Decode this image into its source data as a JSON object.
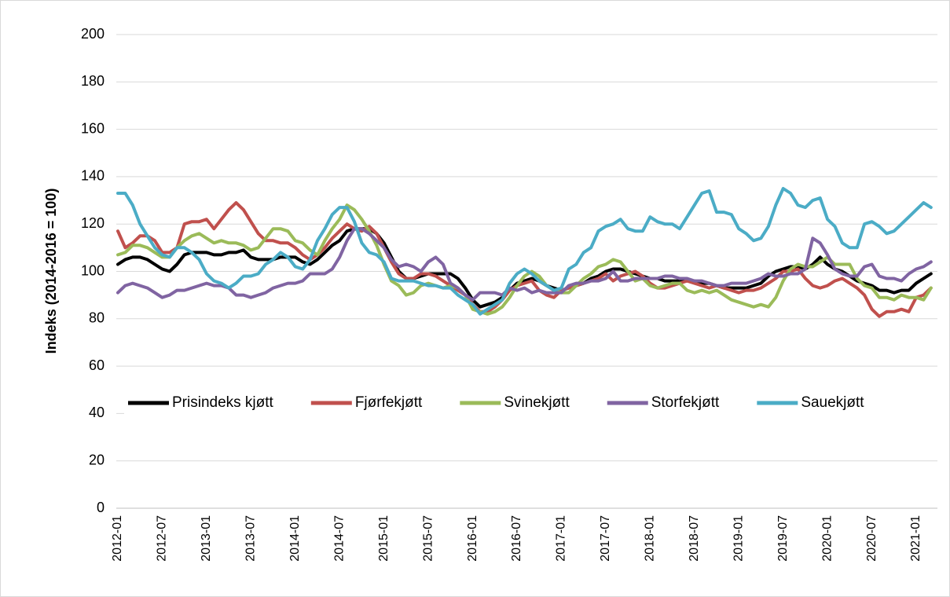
{
  "chart_data": {
    "type": "line",
    "y_label": "Indeks (2014-2016 = 100)",
    "categories": [
      "2012-01",
      null,
      null,
      null,
      null,
      null,
      "2012-07",
      null,
      null,
      null,
      null,
      null,
      "2013-01",
      null,
      null,
      null,
      null,
      null,
      "2013-07",
      null,
      null,
      null,
      null,
      null,
      "2014-01",
      null,
      null,
      null,
      null,
      null,
      "2014-07",
      null,
      null,
      null,
      null,
      null,
      "2015-01",
      null,
      null,
      null,
      null,
      null,
      "2015-07",
      null,
      null,
      null,
      null,
      null,
      "2016-01",
      null,
      null,
      null,
      null,
      null,
      "2016-07",
      null,
      null,
      null,
      null,
      null,
      "2017-01",
      null,
      null,
      null,
      null,
      null,
      "2017-07",
      null,
      null,
      null,
      null,
      null,
      "2018-01",
      null,
      null,
      null,
      null,
      null,
      "2018-07",
      null,
      null,
      null,
      null,
      null,
      "2019-01",
      null,
      null,
      null,
      null,
      null,
      "2019-07",
      null,
      null,
      null,
      null,
      null,
      "2020-01",
      null,
      null,
      null,
      null,
      null,
      "2020-07",
      null,
      null,
      null,
      null,
      null,
      "2021-01",
      null,
      null
    ],
    "series": [
      {
        "name": "Prisindeks kjøtt",
        "color": "#000000",
        "values": [
          103,
          105,
          106,
          106,
          105,
          103,
          101,
          100,
          103,
          107,
          108,
          108,
          108,
          107,
          107,
          108,
          108,
          109,
          106,
          105,
          105,
          105,
          106,
          106,
          106,
          104,
          103,
          105,
          108,
          111,
          113,
          117,
          118,
          118,
          118,
          116,
          112,
          106,
          100,
          97,
          97,
          98,
          99,
          99,
          99,
          99,
          97,
          93,
          88,
          85,
          86,
          87,
          89,
          92,
          95,
          96,
          97,
          96,
          94,
          93,
          92,
          93,
          94,
          95,
          97,
          98,
          100,
          101,
          101,
          100,
          99,
          98,
          97,
          97,
          96,
          96,
          96,
          96,
          96,
          95,
          95,
          94,
          93,
          93,
          93,
          93,
          94,
          95,
          98,
          100,
          101,
          102,
          102,
          101,
          103,
          106,
          103,
          101,
          100,
          98,
          96,
          95,
          94,
          92,
          92,
          91,
          92,
          92,
          95,
          97,
          99
        ]
      },
      {
        "name": "Fjørfekjøtt",
        "color": "#c0504d",
        "values": [
          117,
          110,
          112,
          115,
          115,
          113,
          108,
          108,
          110,
          120,
          121,
          121,
          122,
          118,
          122,
          126,
          129,
          126,
          121,
          116,
          113,
          113,
          112,
          112,
          110,
          107,
          105,
          107,
          110,
          114,
          117,
          120,
          118,
          117,
          119,
          116,
          110,
          104,
          99,
          97,
          97,
          99,
          99,
          98,
          96,
          94,
          92,
          90,
          86,
          83,
          83,
          85,
          88,
          92,
          94,
          95,
          96,
          92,
          90,
          89,
          92,
          93,
          94,
          95,
          96,
          97,
          99,
          96,
          98,
          99,
          100,
          98,
          95,
          93,
          93,
          94,
          95,
          96,
          95,
          94,
          93,
          94,
          93,
          92,
          91,
          92,
          92,
          93,
          95,
          97,
          100,
          100,
          101,
          97,
          94,
          93,
          94,
          96,
          97,
          95,
          93,
          90,
          84,
          81,
          83,
          83,
          84,
          83,
          89,
          90,
          93
        ]
      },
      {
        "name": "Svinekjøtt",
        "color": "#9bbb59",
        "values": [
          107,
          108,
          111,
          111,
          110,
          108,
          106,
          106,
          110,
          113,
          115,
          116,
          114,
          112,
          113,
          112,
          112,
          111,
          109,
          110,
          114,
          118,
          118,
          117,
          113,
          112,
          109,
          107,
          113,
          118,
          122,
          128,
          126,
          122,
          117,
          111,
          103,
          96,
          94,
          90,
          91,
          94,
          95,
          94,
          93,
          94,
          93,
          90,
          84,
          83,
          82,
          83,
          85,
          89,
          94,
          98,
          100,
          98,
          94,
          92,
          91,
          91,
          94,
          97,
          99,
          102,
          103,
          105,
          104,
          100,
          96,
          97,
          94,
          93,
          94,
          95,
          95,
          92,
          91,
          92,
          91,
          92,
          90,
          88,
          87,
          86,
          85,
          86,
          85,
          89,
          96,
          101,
          103,
          102,
          102,
          104,
          106,
          103,
          103,
          103,
          97,
          94,
          93,
          89,
          89,
          88,
          90,
          89,
          89,
          88,
          93
        ]
      },
      {
        "name": "Storfekjøtt",
        "color": "#8064a2",
        "values": [
          91,
          94,
          95,
          94,
          93,
          91,
          89,
          90,
          92,
          92,
          93,
          94,
          95,
          94,
          94,
          93,
          90,
          90,
          89,
          90,
          91,
          93,
          94,
          95,
          95,
          96,
          99,
          99,
          99,
          101,
          106,
          113,
          118,
          118,
          116,
          113,
          110,
          105,
          102,
          103,
          102,
          100,
          104,
          106,
          103,
          95,
          93,
          90,
          88,
          91,
          91,
          91,
          90,
          93,
          92,
          93,
          91,
          92,
          91,
          91,
          91,
          94,
          95,
          95,
          96,
          96,
          97,
          100,
          96,
          96,
          97,
          97,
          97,
          97,
          98,
          98,
          97,
          97,
          96,
          96,
          95,
          94,
          94,
          95,
          95,
          95,
          96,
          97,
          99,
          98,
          98,
          99,
          99,
          101,
          114,
          112,
          107,
          101,
          99,
          98,
          98,
          102,
          103,
          98,
          97,
          97,
          96,
          99,
          101,
          102,
          104
        ]
      },
      {
        "name": "Sauekjøtt",
        "color": "#4bacc6",
        "values": [
          133,
          133,
          128,
          120,
          115,
          110,
          107,
          106,
          110,
          110,
          108,
          105,
          99,
          96,
          95,
          93,
          95,
          98,
          98,
          99,
          103,
          105,
          108,
          106,
          102,
          101,
          105,
          113,
          118,
          124,
          127,
          127,
          121,
          112,
          108,
          107,
          104,
          97,
          96,
          96,
          96,
          95,
          94,
          94,
          93,
          93,
          90,
          88,
          86,
          82,
          84,
          86,
          88,
          95,
          99,
          101,
          99,
          96,
          94,
          92,
          93,
          101,
          103,
          108,
          110,
          117,
          119,
          120,
          122,
          118,
          117,
          117,
          123,
          121,
          120,
          120,
          118,
          123,
          128,
          133,
          134,
          125,
          125,
          124,
          118,
          116,
          113,
          114,
          119,
          128,
          135,
          133,
          128,
          127,
          130,
          131,
          122,
          119,
          112,
          110,
          110,
          120,
          121,
          119,
          116,
          117,
          120,
          123,
          126,
          129,
          127
        ]
      }
    ],
    "ylim": [
      0,
      200
    ],
    "yticks": [
      0,
      20,
      40,
      60,
      80,
      100,
      120,
      140,
      160,
      180,
      200
    ],
    "grid": true
  }
}
